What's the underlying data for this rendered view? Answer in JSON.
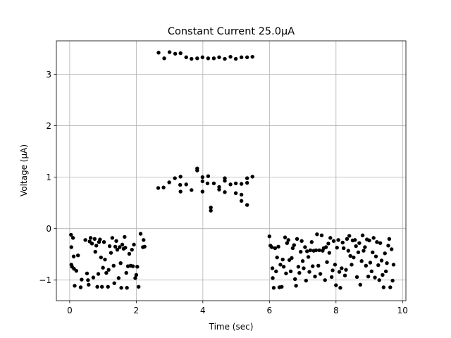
{
  "chart_data": {
    "type": "scatter",
    "title": "Constant Current 25.0μA",
    "xlabel": "Time (sec)",
    "ylabel": "Voltage (μA)",
    "xlim": [
      -0.4,
      10.1
    ],
    "ylim": [
      -1.4,
      3.65
    ],
    "xticks": [
      0,
      2,
      4,
      6,
      8,
      10
    ],
    "yticks": [
      -1,
      0,
      1,
      2,
      3
    ],
    "xtick_labels": [
      "0",
      "2",
      "4",
      "6",
      "8",
      "10"
    ],
    "ytick_labels": [
      "−1",
      "0",
      "1",
      "2",
      "3"
    ],
    "grid": true,
    "marker_color": "#000000",
    "series": [
      {
        "points": [
          [
            0.04,
            -0.12
          ],
          [
            0.05,
            -0.36
          ],
          [
            0.05,
            -0.7
          ],
          [
            0.07,
            -0.74
          ],
          [
            0.1,
            -0.18
          ],
          [
            0.12,
            -0.54
          ],
          [
            0.13,
            -0.78
          ],
          [
            0.15,
            -1.11
          ],
          [
            0.2,
            -0.82
          ],
          [
            0.25,
            -0.52
          ],
          [
            0.33,
            -1.14
          ],
          [
            0.36,
            -0.99
          ],
          [
            0.47,
            -0.22
          ],
          [
            0.52,
            -0.87
          ],
          [
            0.55,
            -1.0
          ],
          [
            0.57,
            -1.09
          ],
          [
            0.6,
            -0.25
          ],
          [
            0.63,
            -0.18
          ],
          [
            0.67,
            -0.29
          ],
          [
            0.71,
            -0.95
          ],
          [
            0.75,
            -0.2
          ],
          [
            0.77,
            -0.45
          ],
          [
            0.8,
            -0.33
          ],
          [
            0.83,
            -1.13
          ],
          [
            0.86,
            -0.88
          ],
          [
            0.88,
            -0.26
          ],
          [
            0.91,
            -0.21
          ],
          [
            0.94,
            -0.56
          ],
          [
            0.97,
            -1.13
          ],
          [
            1.0,
            -0.76
          ],
          [
            1.03,
            -0.26
          ],
          [
            1.06,
            -0.6
          ],
          [
            1.1,
            -0.86
          ],
          [
            1.15,
            -1.13
          ],
          [
            1.17,
            -0.8
          ],
          [
            1.2,
            -0.34
          ],
          [
            1.24,
            -0.47
          ],
          [
            1.28,
            -0.18
          ],
          [
            1.32,
            -0.72
          ],
          [
            1.34,
            -1.06
          ],
          [
            1.37,
            -0.35
          ],
          [
            1.4,
            -0.24
          ],
          [
            1.43,
            -0.41
          ],
          [
            1.47,
            -0.96
          ],
          [
            1.5,
            -0.36
          ],
          [
            1.53,
            -0.67
          ],
          [
            1.55,
            -1.15
          ],
          [
            1.58,
            -0.31
          ],
          [
            1.62,
            -0.39
          ],
          [
            1.65,
            -0.16
          ],
          [
            1.67,
            -0.37
          ],
          [
            1.7,
            -0.86
          ],
          [
            1.72,
            -1.15
          ],
          [
            1.75,
            -0.73
          ],
          [
            1.79,
            -0.49
          ],
          [
            1.83,
            -0.72
          ],
          [
            1.87,
            -0.41
          ],
          [
            1.9,
            -0.73
          ],
          [
            1.93,
            -0.31
          ],
          [
            1.97,
            -0.96
          ],
          [
            2.0,
            -0.9
          ],
          [
            2.03,
            -0.74
          ],
          [
            2.07,
            -1.13
          ],
          [
            2.13,
            -0.1
          ],
          [
            2.2,
            -0.36
          ],
          [
            2.22,
            -0.22
          ],
          [
            2.25,
            -0.35
          ],
          [
            2.66,
            0.79
          ],
          [
            2.82,
            0.8
          ],
          [
            2.99,
            0.9
          ],
          [
            3.16,
            0.98
          ],
          [
            3.32,
            0.85
          ],
          [
            3.33,
            1.01
          ],
          [
            3.33,
            0.72
          ],
          [
            3.5,
            0.86
          ],
          [
            3.66,
            0.75
          ],
          [
            3.83,
            1.17
          ],
          [
            3.83,
            1.13
          ],
          [
            3.99,
            0.72
          ],
          [
            3.99,
            0.92
          ],
          [
            3.99,
            1.0
          ],
          [
            4.14,
            0.88
          ],
          [
            4.16,
            1.02
          ],
          [
            4.24,
            0.41
          ],
          [
            4.24,
            0.35
          ],
          [
            4.33,
            0.88
          ],
          [
            4.49,
            0.81
          ],
          [
            4.49,
            0.76
          ],
          [
            4.66,
            0.71
          ],
          [
            4.66,
            0.93
          ],
          [
            4.66,
            0.98
          ],
          [
            4.83,
            0.86
          ],
          [
            4.99,
            0.88
          ],
          [
            4.99,
            0.69
          ],
          [
            5.16,
            0.87
          ],
          [
            5.16,
            0.54
          ],
          [
            5.16,
            0.66
          ],
          [
            5.33,
            0.89
          ],
          [
            5.33,
            0.98
          ],
          [
            5.33,
            0.46
          ],
          [
            5.49,
            1.01
          ],
          [
            2.67,
            3.42
          ],
          [
            2.84,
            3.31
          ],
          [
            3.0,
            3.43
          ],
          [
            3.17,
            3.4
          ],
          [
            3.33,
            3.41
          ],
          [
            3.5,
            3.33
          ],
          [
            3.66,
            3.3
          ],
          [
            3.83,
            3.31
          ],
          [
            3.99,
            3.33
          ],
          [
            4.16,
            3.31
          ],
          [
            4.33,
            3.31
          ],
          [
            4.49,
            3.33
          ],
          [
            4.66,
            3.3
          ],
          [
            4.83,
            3.34
          ],
          [
            4.99,
            3.3
          ],
          [
            5.16,
            3.33
          ],
          [
            5.33,
            3.33
          ],
          [
            5.49,
            3.34
          ],
          [
            6.0,
            -0.15
          ],
          [
            6.03,
            -0.33
          ],
          [
            6.07,
            -0.36
          ],
          [
            6.09,
            -0.77
          ],
          [
            6.1,
            -0.96
          ],
          [
            6.13,
            -1.15
          ],
          [
            6.17,
            -0.38
          ],
          [
            6.2,
            -0.83
          ],
          [
            6.23,
            -0.56
          ],
          [
            6.27,
            -0.35
          ],
          [
            6.3,
            -1.14
          ],
          [
            6.33,
            -0.7
          ],
          [
            6.37,
            -1.13
          ],
          [
            6.4,
            -0.6
          ],
          [
            6.43,
            -0.74
          ],
          [
            6.47,
            -0.17
          ],
          [
            6.5,
            -0.87
          ],
          [
            6.53,
            -0.28
          ],
          [
            6.57,
            -0.22
          ],
          [
            6.6,
            -0.61
          ],
          [
            6.64,
            -0.83
          ],
          [
            6.67,
            -0.57
          ],
          [
            6.7,
            -0.38
          ],
          [
            6.74,
            -0.32
          ],
          [
            6.77,
            -0.98
          ],
          [
            6.8,
            -1.11
          ],
          [
            6.83,
            -0.2
          ],
          [
            6.87,
            -0.74
          ],
          [
            6.9,
            -0.86
          ],
          [
            6.94,
            -0.45
          ],
          [
            6.97,
            -0.24
          ],
          [
            7.0,
            -0.63
          ],
          [
            7.03,
            -0.77
          ],
          [
            7.07,
            -0.36
          ],
          [
            7.1,
            -1.01
          ],
          [
            7.13,
            -0.44
          ],
          [
            7.17,
            -0.55
          ],
          [
            7.2,
            -0.84
          ],
          [
            7.23,
            -0.42
          ],
          [
            7.27,
            -0.26
          ],
          [
            7.3,
            -0.73
          ],
          [
            7.33,
            -0.43
          ],
          [
            7.37,
            -0.93
          ],
          [
            7.4,
            -0.42
          ],
          [
            7.43,
            -0.11
          ],
          [
            7.47,
            -0.72
          ],
          [
            7.5,
            -0.42
          ],
          [
            7.53,
            -0.88
          ],
          [
            7.57,
            -0.13
          ],
          [
            7.6,
            -0.43
          ],
          [
            7.63,
            -0.38
          ],
          [
            7.67,
            -1.0
          ],
          [
            7.7,
            -0.36
          ],
          [
            7.73,
            -0.65
          ],
          [
            7.77,
            -0.29
          ],
          [
            7.8,
            -0.47
          ],
          [
            7.83,
            -0.18
          ],
          [
            7.87,
            -0.94
          ],
          [
            7.9,
            -0.81
          ],
          [
            7.93,
            -0.24
          ],
          [
            7.97,
            -0.7
          ],
          [
            8.0,
            -1.1
          ],
          [
            8.03,
            -0.37
          ],
          [
            8.07,
            -0.22
          ],
          [
            8.1,
            -0.84
          ],
          [
            8.13,
            -1.15
          ],
          [
            8.17,
            -0.77
          ],
          [
            8.2,
            -0.27
          ],
          [
            8.23,
            -0.38
          ],
          [
            8.27,
            -0.91
          ],
          [
            8.3,
            -0.8
          ],
          [
            8.33,
            -0.2
          ],
          [
            8.37,
            -0.43
          ],
          [
            8.4,
            -0.14
          ],
          [
            8.43,
            -0.53
          ],
          [
            8.47,
            -0.7
          ],
          [
            8.5,
            -0.23
          ],
          [
            8.53,
            -0.56
          ],
          [
            8.57,
            -0.22
          ],
          [
            8.6,
            -0.34
          ],
          [
            8.63,
            -0.94
          ],
          [
            8.67,
            -0.46
          ],
          [
            8.7,
            -0.28
          ],
          [
            8.73,
            -1.09
          ],
          [
            8.77,
            -0.63
          ],
          [
            8.8,
            -0.13
          ],
          [
            8.83,
            -0.43
          ],
          [
            8.87,
            -0.36
          ],
          [
            8.9,
            -0.72
          ],
          [
            8.93,
            -0.21
          ],
          [
            8.97,
            -0.93
          ],
          [
            9.0,
            -0.23
          ],
          [
            9.03,
            -0.66
          ],
          [
            9.07,
            -0.83
          ],
          [
            9.1,
            -0.46
          ],
          [
            9.13,
            -0.18
          ],
          [
            9.17,
            -0.95
          ],
          [
            9.2,
            -0.54
          ],
          [
            9.23,
            -0.26
          ],
          [
            9.27,
            -0.71
          ],
          [
            9.3,
            -1.0
          ],
          [
            9.33,
            -0.28
          ],
          [
            9.37,
            -0.62
          ],
          [
            9.4,
            -0.9
          ],
          [
            9.43,
            -1.14
          ],
          [
            9.47,
            -0.48
          ],
          [
            9.5,
            -0.83
          ],
          [
            9.53,
            -0.67
          ],
          [
            9.57,
            -0.33
          ],
          [
            9.6,
            -0.2
          ],
          [
            9.63,
            -1.14
          ],
          [
            9.67,
            -0.4
          ],
          [
            9.7,
            -1.01
          ],
          [
            9.73,
            -0.7
          ]
        ]
      }
    ]
  }
}
